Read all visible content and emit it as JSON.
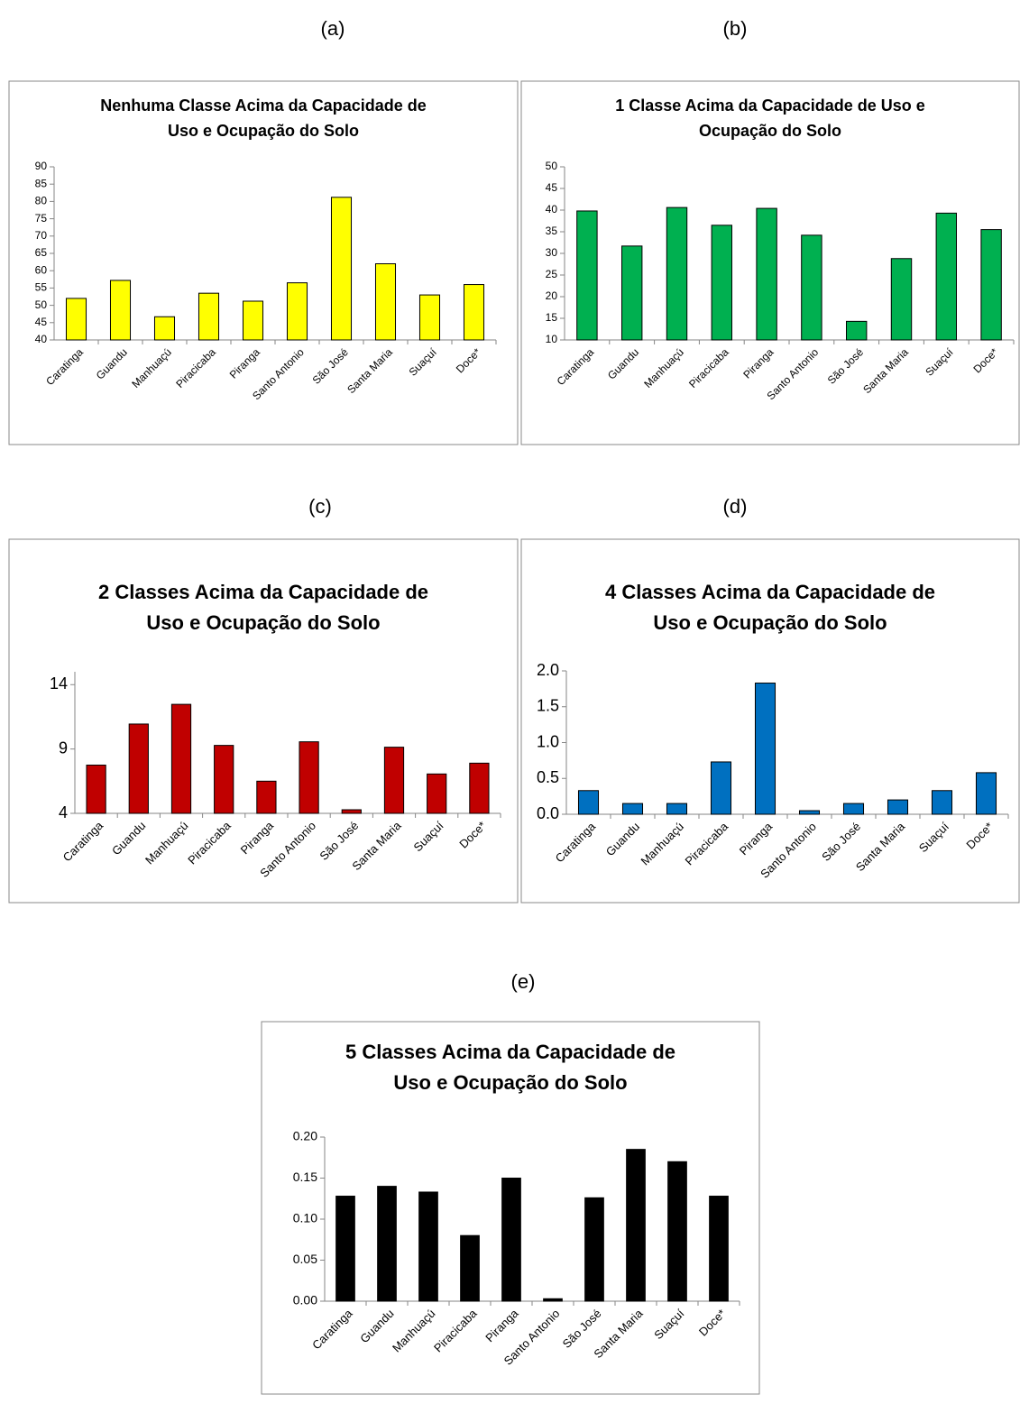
{
  "chart_data": [
    {
      "type": "bar",
      "label": "(a)",
      "title": [
        "Nenhuma Classe Acima da Capacidade de",
        "Uso e Ocupação do Solo"
      ],
      "categories": [
        "Caratinga",
        "Guandu",
        "Manhuaçú",
        "Piracicaba",
        "Piranga",
        "Santo Antonio",
        "São José",
        "Santa Maria",
        "Suaçuí",
        "Doce*"
      ],
      "values": [
        52,
        57.2,
        46.7,
        53.5,
        51.2,
        56.5,
        81.2,
        62,
        53,
        56
      ],
      "color": "#ffff00",
      "ylim": [
        40,
        90
      ],
      "yticks": [
        40,
        45,
        50,
        55,
        60,
        65,
        70,
        75,
        80,
        85,
        90
      ]
    },
    {
      "type": "bar",
      "label": "(b)",
      "title": [
        "1 Classe Acima da Capacidade de Uso e",
        "Ocupação do Solo"
      ],
      "categories": [
        "Caratinga",
        "Guandu",
        "Manhuaçú",
        "Piracicaba",
        "Piranga",
        "Santo Antonio",
        "São José",
        "Santa Maria",
        "Suaçuí",
        "Doce*"
      ],
      "values": [
        39.8,
        31.7,
        40.6,
        36.5,
        40.4,
        34.2,
        14.3,
        28.8,
        39.3,
        35.5
      ],
      "color": "#00b050",
      "ylim": [
        10,
        50
      ],
      "yticks": [
        10,
        15,
        20,
        25,
        30,
        35,
        40,
        45,
        50
      ]
    },
    {
      "type": "bar",
      "label": "(c)",
      "title": [
        "2 Classes Acima da Capacidade de",
        "Uso e Ocupação do Solo"
      ],
      "categories": [
        "Caratinga",
        "Guandu",
        "Manhuaçú",
        "Piracicaba",
        "Piranga",
        "Santo Antonio",
        "São José",
        "Santa Maria",
        "Suaçuí",
        "Doce*"
      ],
      "values": [
        7.75,
        10.94,
        12.47,
        9.28,
        6.5,
        9.56,
        4.28,
        9.14,
        7.06,
        7.9
      ],
      "color": "#c00000",
      "ylim": [
        4,
        15
      ],
      "yticks": [
        4,
        9,
        14
      ]
    },
    {
      "type": "bar",
      "label": "(d)",
      "title": [
        "4 Classes Acima da Capacidade de",
        "Uso e Ocupação do Solo"
      ],
      "categories": [
        "Caratinga",
        "Guandu",
        "Manhuaçú",
        "Piracicaba",
        "Piranga",
        "Santo Antonio",
        "São José",
        "Santa Maria",
        "Suaçuí",
        "Doce*"
      ],
      "values": [
        0.33,
        0.15,
        0.15,
        0.73,
        1.83,
        0.05,
        0.15,
        0.2,
        0.33,
        0.58
      ],
      "color": "#0070c0",
      "ylim": [
        0,
        2
      ],
      "yticks": [
        {
          "value": 0,
          "label": "0.0"
        },
        0.5,
        {
          "value": 1,
          "label": "1.0"
        },
        1.5,
        {
          "value": 2,
          "label": "2.0"
        }
      ]
    },
    {
      "type": "bar",
      "label": "(e)",
      "title": [
        "5 Classes Acima da Capacidade de",
        "Uso e Ocupação do Solo"
      ],
      "categories": [
        "Caratinga",
        "Guandu",
        "Manhuaçú",
        "Piracicaba",
        "Piranga",
        "Santo Antonio",
        "São José",
        "Santa Maria",
        "Suaçuí",
        "Doce*"
      ],
      "values": [
        0.128,
        0.14,
        0.133,
        0.08,
        0.15,
        0.003,
        0.126,
        0.185,
        0.17,
        0.128
      ],
      "color": "#000000",
      "ylim": [
        0,
        0.2
      ],
      "yticks": [
        {
          "value": 0,
          "label": "0.00"
        },
        {
          "value": 0.05,
          "label": "0.05"
        },
        {
          "value": 0.1,
          "label": "0.10"
        },
        {
          "value": 0.15,
          "label": "0.15"
        },
        {
          "value": 0.2,
          "label": "0.20"
        }
      ]
    }
  ]
}
